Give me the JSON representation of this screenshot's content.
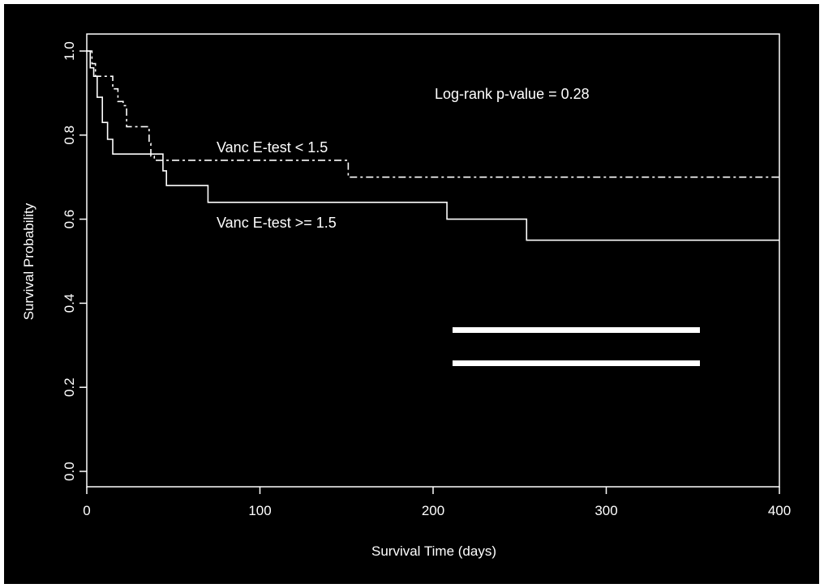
{
  "chart_data": {
    "type": "line",
    "subtype": "kaplan-meier step",
    "xlabel": "Survival Time (days)",
    "ylabel": "Survival Probability",
    "xlim": [
      0,
      400
    ],
    "ylim": [
      0,
      1
    ],
    "xticks": [
      "0",
      "100",
      "200",
      "300",
      "400"
    ],
    "yticks": [
      "0.0",
      "0.2",
      "0.4",
      "0.6",
      "0.8",
      "1.0"
    ],
    "grid": false,
    "background": "#000000",
    "foreground": "#ffffff",
    "annotations": {
      "pvalue": "Log-rank p-value = 0.28",
      "series_low": "Vanc E-test <  1.5",
      "series_high": "Vanc E-test >= 1.5",
      "box_text": "Log-rank p-value = 0.28"
    },
    "series": [
      {
        "name": "Vanc E-test >= 1.5",
        "style": "solid",
        "steps": [
          [
            0,
            1.0
          ],
          [
            2,
            0.96
          ],
          [
            4,
            0.94
          ],
          [
            6,
            0.89
          ],
          [
            9,
            0.83
          ],
          [
            12,
            0.79
          ],
          [
            15,
            0.755
          ],
          [
            35,
            0.755
          ],
          [
            44,
            0.715
          ],
          [
            46,
            0.68
          ],
          [
            70,
            0.64
          ],
          [
            208,
            0.6
          ],
          [
            254,
            0.55
          ],
          [
            400,
            0.55
          ]
        ]
      },
      {
        "name": "Vanc E-test <  1.5",
        "style": "dashed",
        "steps": [
          [
            0,
            1.0
          ],
          [
            3,
            0.97
          ],
          [
            5,
            0.94
          ],
          [
            12,
            0.94
          ],
          [
            15,
            0.91
          ],
          [
            18,
            0.88
          ],
          [
            21,
            0.87
          ],
          [
            23,
            0.82
          ],
          [
            35,
            0.82
          ],
          [
            36,
            0.78
          ],
          [
            37,
            0.75
          ],
          [
            39,
            0.74
          ],
          [
            150,
            0.74
          ],
          [
            151,
            0.7
          ],
          [
            400,
            0.7
          ]
        ]
      }
    ]
  }
}
